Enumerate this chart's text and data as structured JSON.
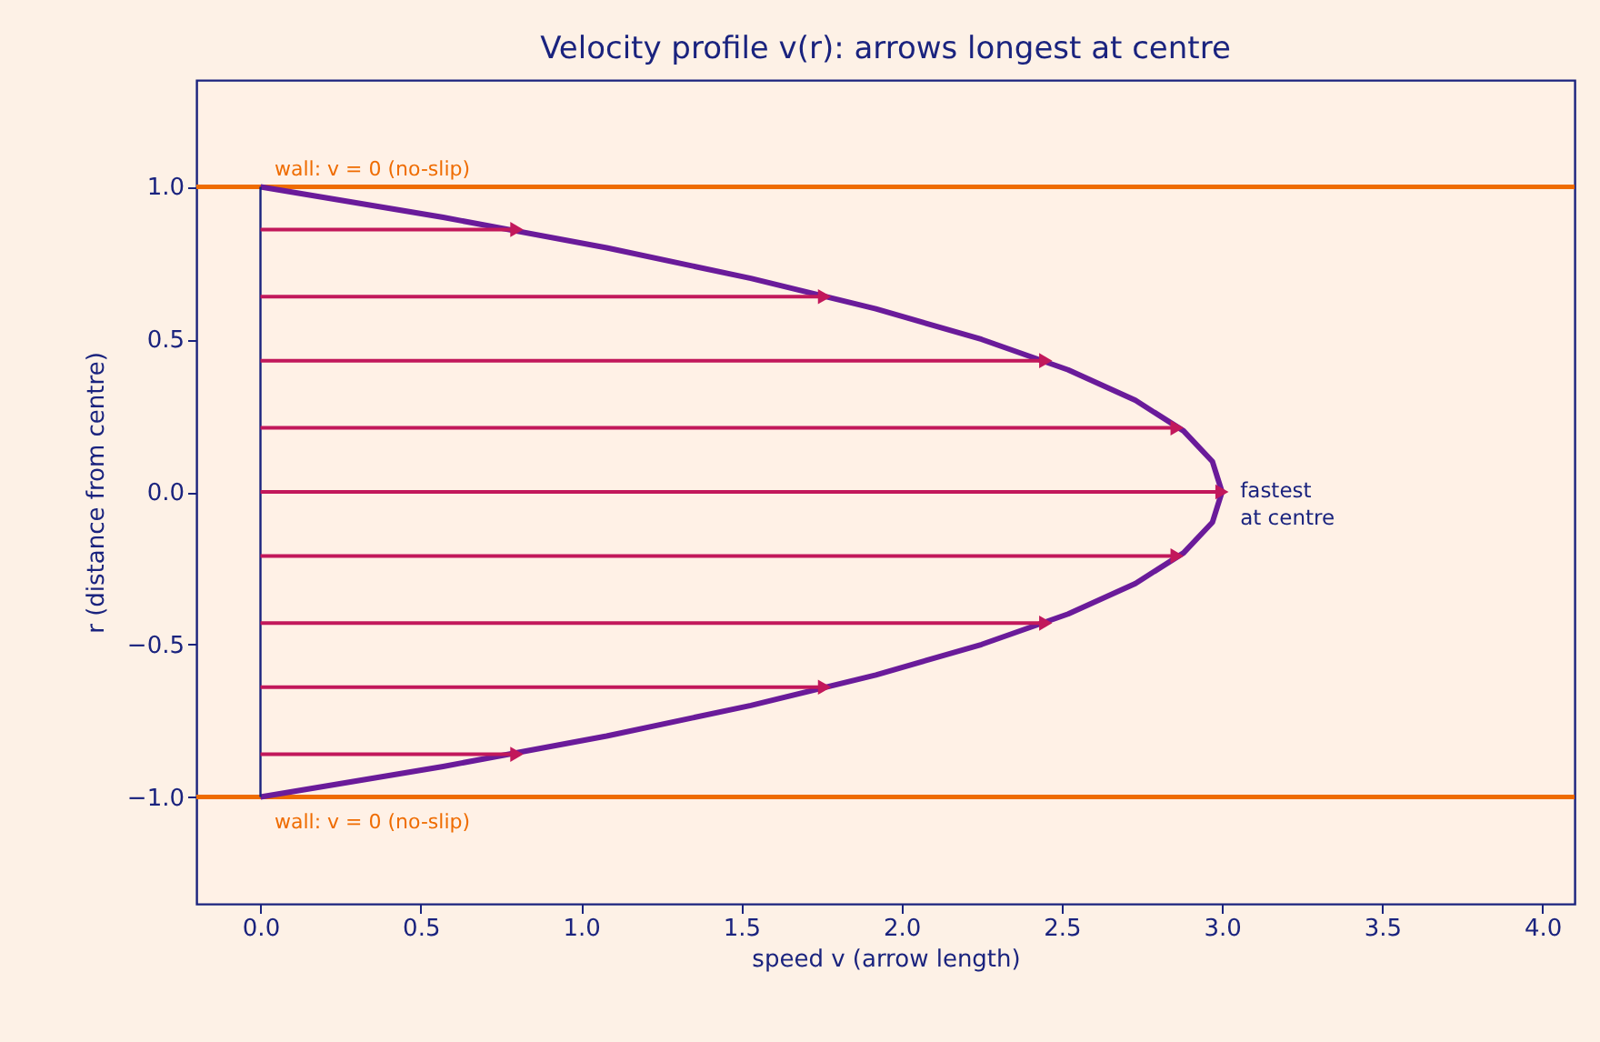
{
  "chart_data": {
    "type": "line",
    "title": "Velocity profile v(r): arrows longest at centre",
    "xlabel": "speed v  (arrow length)",
    "ylabel": "r  (distance from centre)",
    "xlim": [
      -0.2,
      4.1
    ],
    "ylim": [
      -1.35,
      1.35
    ],
    "xticks": [
      {
        "value": 0,
        "label": "0.0"
      },
      {
        "value": 0.5,
        "label": "0.5"
      },
      {
        "value": 1,
        "label": "1.0"
      },
      {
        "value": 1.5,
        "label": "1.5"
      },
      {
        "value": 2,
        "label": "2.0"
      },
      {
        "value": 2.5,
        "label": "2.5"
      },
      {
        "value": 3,
        "label": "3.0"
      },
      {
        "value": 3.5,
        "label": "3.5"
      },
      {
        "value": 4,
        "label": "4.0"
      }
    ],
    "yticks": [
      {
        "value": -1,
        "label": "−1.0"
      },
      {
        "value": -0.5,
        "label": "−0.5"
      },
      {
        "value": 0,
        "label": "0.0"
      },
      {
        "value": 0.5,
        "label": "0.5"
      },
      {
        "value": 1,
        "label": "1.0"
      }
    ],
    "grid": false,
    "series": [
      {
        "color": "#6a1b9a",
        "x": [
          0,
          0.57,
          1.08,
          1.53,
          1.92,
          2.25,
          2.52,
          2.73,
          2.88,
          2.97,
          3,
          2.97,
          2.88,
          2.73,
          2.52,
          2.25,
          1.92,
          1.53,
          1.08,
          0.57,
          0
        ],
        "values": [
          -1,
          -0.9,
          -0.8,
          -0.7,
          -0.6,
          -0.5,
          -0.4,
          -0.3,
          -0.2,
          -0.1,
          0,
          0.1,
          0.2,
          0.3,
          0.4,
          0.5,
          0.6,
          0.7,
          0.8,
          0.9,
          1
        ],
        "marker": "none"
      },
      {
        "color": "#1a237e",
        "x": [
          0,
          0
        ],
        "values": [
          -1,
          1
        ],
        "marker": "none"
      },
      {
        "color": "#c2185b",
        "x": [
          0,
          0.8
        ],
        "values": [
          0.86,
          0.86
        ],
        "marker": "triangle"
      },
      {
        "color": "#c2185b",
        "x": [
          0,
          1.76
        ],
        "values": [
          0.64,
          0.64
        ],
        "marker": "triangle"
      },
      {
        "color": "#c2185b",
        "x": [
          0,
          2.45
        ],
        "values": [
          0.43,
          0.43
        ],
        "marker": "triangle"
      },
      {
        "color": "#c2185b",
        "x": [
          0,
          2.86
        ],
        "values": [
          0.21,
          0.21
        ],
        "marker": "triangle"
      },
      {
        "color": "#c2185b",
        "x": [
          0,
          3
        ],
        "values": [
          0,
          0
        ],
        "marker": "triangle"
      },
      {
        "color": "#c2185b",
        "x": [
          0,
          2.86
        ],
        "values": [
          -0.21,
          -0.21
        ],
        "marker": "triangle"
      },
      {
        "color": "#c2185b",
        "x": [
          0,
          2.45
        ],
        "values": [
          -0.43,
          -0.43
        ],
        "marker": "triangle"
      },
      {
        "color": "#c2185b",
        "x": [
          0,
          1.76
        ],
        "values": [
          -0.64,
          -0.64
        ],
        "marker": "triangle"
      },
      {
        "color": "#c2185b",
        "x": [
          0,
          0.8
        ],
        "values": [
          -0.86,
          -0.86
        ],
        "marker": "triangle"
      }
    ],
    "ref_lines": [
      {
        "axis": "y",
        "value": 1,
        "color": "#ef6c00"
      },
      {
        "axis": "y",
        "value": -1,
        "color": "#ef6c00"
      }
    ],
    "annotations": [
      {
        "text": "wall: v = 0 (no-slip)",
        "y": 1
      },
      {
        "text": "wall: v = 0 (no-slip)",
        "y": -1
      },
      {
        "text": "fastest\nat centre",
        "x": 3,
        "y": 0
      }
    ]
  }
}
